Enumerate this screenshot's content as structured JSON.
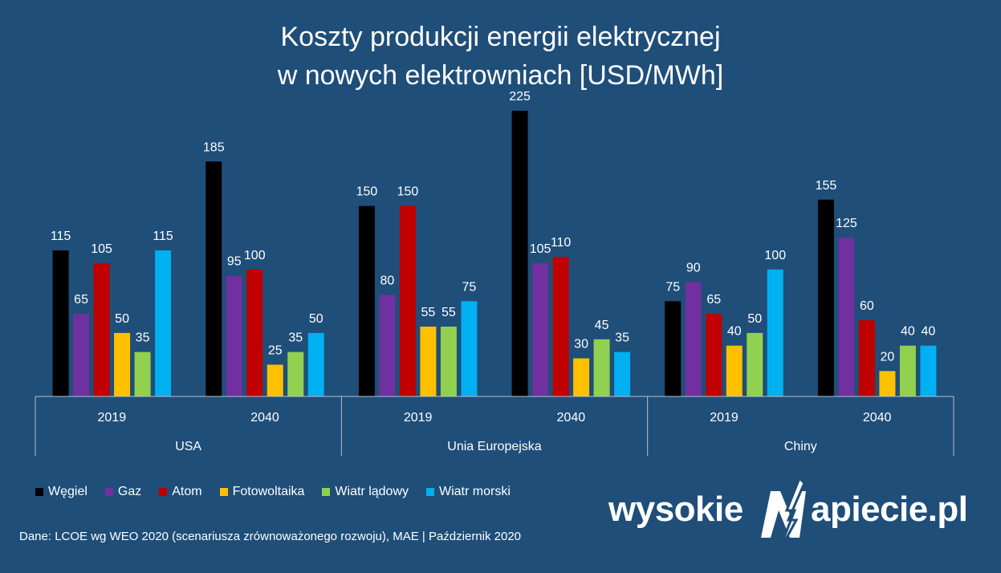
{
  "chart_data": {
    "type": "bar",
    "title_lines": [
      "Koszty produkcji energii elektrycznej",
      "w nowych elektrowniach [USD/MWh]"
    ],
    "groups": [
      {
        "region": "USA",
        "years": [
          "2019",
          "2040"
        ]
      },
      {
        "region": "Unia Europejska",
        "years": [
          "2019",
          "2040"
        ]
      },
      {
        "region": "Chiny",
        "years": [
          "2019",
          "2040"
        ]
      }
    ],
    "categories": [
      "USA 2019",
      "USA 2040",
      "Unia Europejska 2019",
      "Unia Europejska 2040",
      "Chiny 2019",
      "Chiny 2040"
    ],
    "series": [
      {
        "name": "Węgiel",
        "color": "#000000",
        "values": [
          115,
          185,
          150,
          225,
          75,
          155
        ]
      },
      {
        "name": "Gaz",
        "color": "#7030a0",
        "values": [
          65,
          95,
          80,
          105,
          90,
          125
        ]
      },
      {
        "name": "Atom",
        "color": "#c00000",
        "values": [
          105,
          100,
          150,
          110,
          65,
          60
        ]
      },
      {
        "name": "Fotowoltaika",
        "color": "#ffc000",
        "values": [
          50,
          25,
          55,
          30,
          40,
          20
        ]
      },
      {
        "name": "Wiatr lądowy",
        "color": "#92d050",
        "values": [
          35,
          35,
          55,
          45,
          50,
          40
        ]
      },
      {
        "name": "Wiatr morski",
        "color": "#00b0f0",
        "values": [
          115,
          50,
          75,
          35,
          100,
          40
        ]
      }
    ],
    "ylim": [
      0,
      225
    ],
    "grid": false,
    "legend": "bottom-left"
  },
  "source_text": "Dane: LCOE wg WEO 2020 (scenariusza zrównoważonego rozwoju), MAE   |   Październik 2020",
  "logo": {
    "left": "wysokie",
    "right": "apiecie.pl"
  },
  "colors": {
    "background": "#1f4e79",
    "axis": "#bfbfbf"
  }
}
